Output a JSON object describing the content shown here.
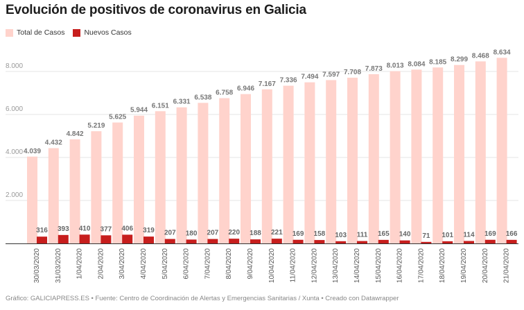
{
  "title": "Evolución de positivos de coronavirus en Galicia",
  "footer": "Gráfico: GALICIAPRESS.ES • Fuente: Centro de Coordinación de Alertas y Emergencias Sanitarias / Xunta • Creado con Datawrapper",
  "chart_data": {
    "type": "bar",
    "title": "Evolución de positivos de coronavirus en Galicia",
    "legend_position": "top-left",
    "grid": true,
    "ylim": [
      0,
      8000
    ],
    "yticks": [
      0,
      2000,
      4000,
      6000,
      8000
    ],
    "ytick_labels": [
      "",
      "2.000",
      "4.000",
      "6.000",
      "8.000"
    ],
    "categories": [
      "30/03/2020",
      "31/03/2020",
      "1/04/2020",
      "2/04/2020",
      "3/04/2020",
      "4/04/2020",
      "5/04/2020",
      "6/04/2020",
      "7/04/2020",
      "8/04/2020",
      "9/04/2020",
      "10/04/2020",
      "11/04/2020",
      "12/04/2020",
      "13/04/2020",
      "14/04/2020",
      "15/04/2020",
      "16/04/2020",
      "17/04/2020",
      "18/04/2020",
      "19/04/2020",
      "20/04/2020",
      "21/04/2020"
    ],
    "series": [
      {
        "name": "Total de Casos",
        "color": "#ffd3cc",
        "values": [
          4039,
          4432,
          4842,
          5219,
          5625,
          5944,
          6151,
          6331,
          6538,
          6758,
          6946,
          7167,
          7336,
          7494,
          7597,
          7708,
          7873,
          8013,
          8084,
          8185,
          8299,
          8468,
          8634
        ],
        "labels": [
          "4.039",
          "4.432",
          "4.842",
          "5.219",
          "5.625",
          "5.944",
          "6.151",
          "6.331",
          "6.538",
          "6.758",
          "6.946",
          "7.167",
          "7.336",
          "7.494",
          "7.597",
          "7.708",
          "7.873",
          "8.013",
          "8.084",
          "8.185",
          "8.299",
          "8.468",
          "8.634"
        ]
      },
      {
        "name": "Nuevos Casos",
        "color": "#c71e1d",
        "values": [
          316,
          393,
          410,
          377,
          406,
          319,
          207,
          180,
          207,
          220,
          188,
          221,
          169,
          158,
          103,
          111,
          165,
          140,
          71,
          101,
          114,
          169,
          166
        ],
        "labels": [
          "316",
          "393",
          "410",
          "377",
          "406",
          "319",
          "207",
          "180",
          "207",
          "220",
          "188",
          "221",
          "169",
          "158",
          "103",
          "111",
          "165",
          "140",
          "71",
          "101",
          "114",
          "169",
          "166"
        ]
      }
    ]
  }
}
